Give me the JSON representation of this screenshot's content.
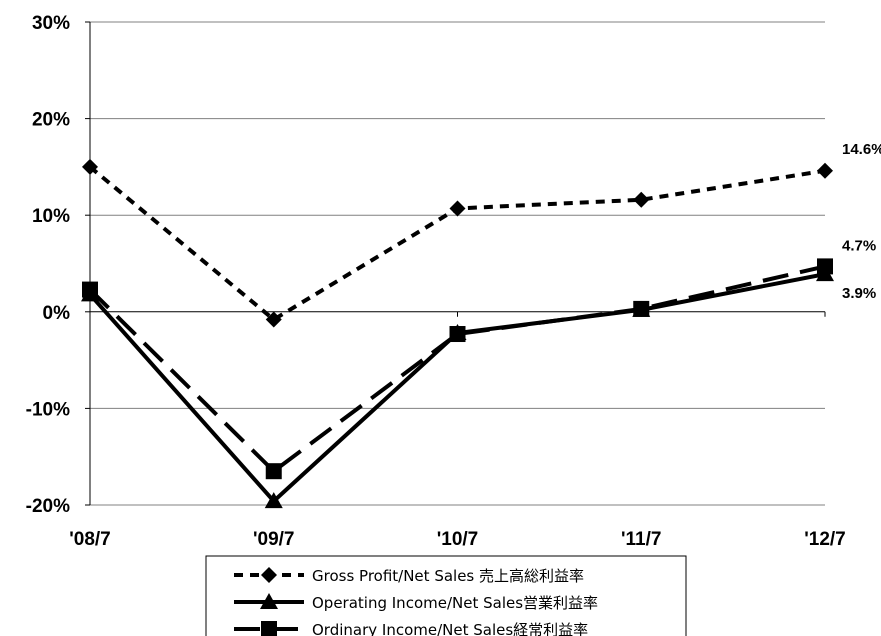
{
  "chart_data": {
    "type": "line",
    "title": "",
    "xlabel": "",
    "ylabel": "",
    "categories": [
      "'08/7",
      "'09/7",
      "'10/7",
      "'11/7",
      "'12/7"
    ],
    "ylim": [
      -20,
      30
    ],
    "ytick_values": [
      30,
      20,
      10,
      0,
      -10,
      -20
    ],
    "ytick_labels": [
      "30%",
      "20%",
      "10%",
      "0%",
      "-10%",
      "-20%"
    ],
    "grid": "horizontal",
    "legend_position": "bottom",
    "series": [
      {
        "name": "Gross Profit/Net Sales 売上高総利益率",
        "values": [
          15.0,
          -0.8,
          10.7,
          11.6,
          14.6
        ],
        "marker": "diamond",
        "line_style": "short-dash",
        "color": "#000000"
      },
      {
        "name": "Operating Income/Net Sales営業利益率",
        "values": [
          1.8,
          -19.6,
          -2.2,
          0.2,
          3.9
        ],
        "marker": "triangle",
        "line_style": "solid",
        "color": "#000000"
      },
      {
        "name": "Ordinary Income/Net Sales経常利益率",
        "values": [
          2.3,
          -16.5,
          -2.3,
          0.3,
          4.7
        ],
        "marker": "square",
        "line_style": "long-dash",
        "color": "#000000"
      }
    ],
    "annotations": [
      {
        "text": "14.6%",
        "series": 0,
        "index": 4
      },
      {
        "text": "4.7%",
        "series": 2,
        "index": 4
      },
      {
        "text": "3.9%",
        "series": 1,
        "index": 4
      }
    ]
  }
}
